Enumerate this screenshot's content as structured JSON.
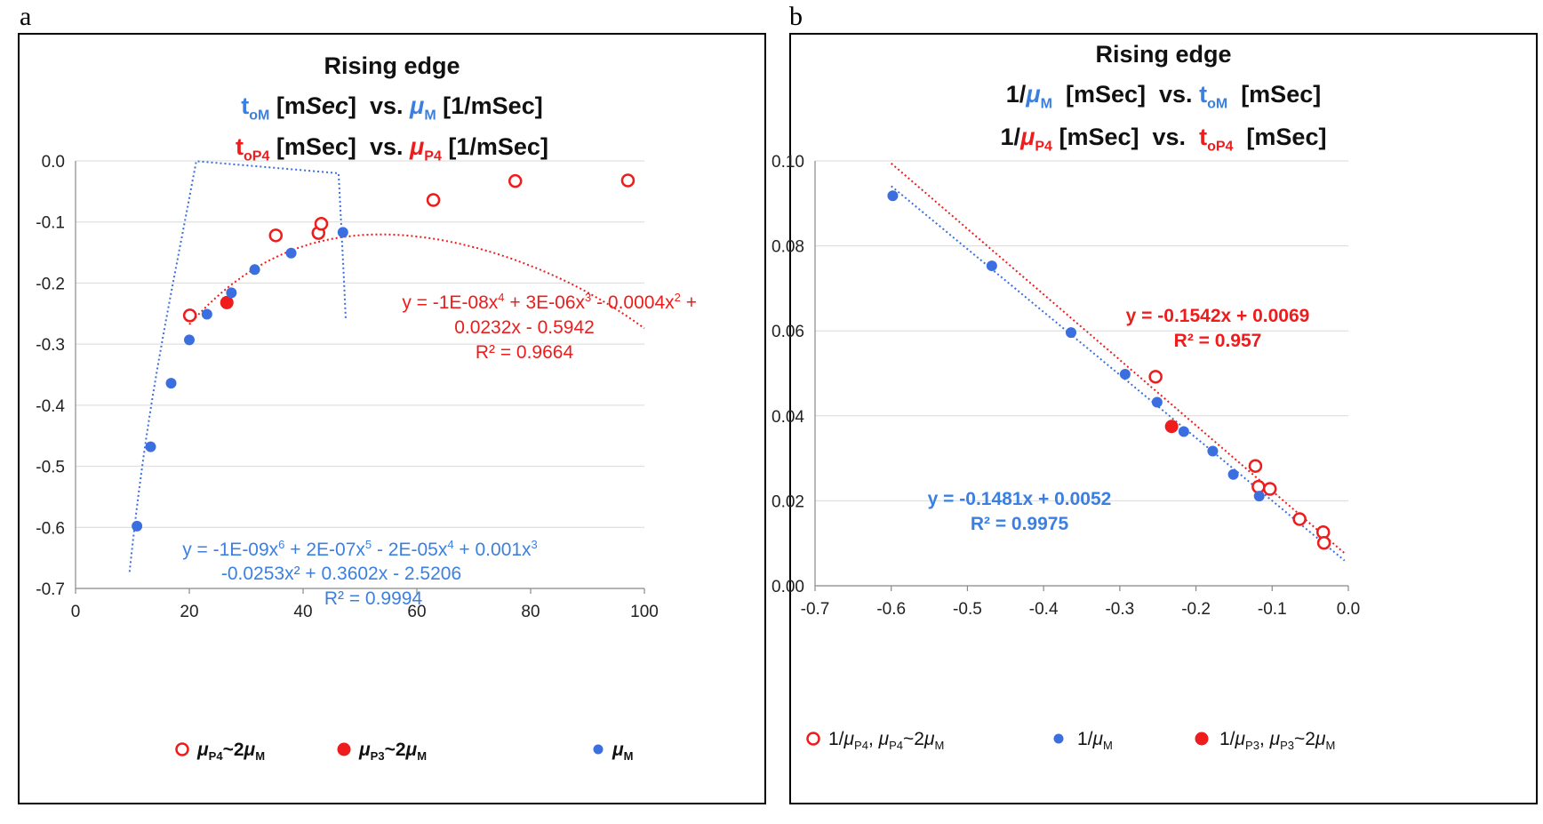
{
  "panel_a": {
    "label": "a",
    "title": "Rising edge",
    "line2": {
      "t": "t",
      "t_sub": "oM",
      "unit1": "[m",
      "unit1_it": "Sec",
      "unit1_end": "]",
      "vs": "vs.",
      "mu": "μ",
      "mu_sub": "M",
      "unit2": "[1/mSec]"
    },
    "line3": {
      "t": "t",
      "t_sub": "oP4",
      "unit1": "[mSec]",
      "vs": "vs.",
      "mu": "μ",
      "mu_sub": "P4",
      "unit2": "[1/mSec]"
    },
    "red_eq_line1": "y = -1E-08x",
    "red_eq_sup1": "4",
    "red_eq_mid1": " + 3E-06x",
    "red_eq_sup2": "3",
    "red_eq_mid2": " - 0.0004x",
    "red_eq_sup3": "2",
    "red_eq_end": " +",
    "red_eq_line2": "0.0232x - 0.5942",
    "red_eq_r2": "R² = 0.9664",
    "blue_eq_line1": "y = -1E-09x",
    "blue_eq_s1": "6",
    "blue_eq_m1": " + 2E-07x",
    "blue_eq_s2": "5",
    "blue_eq_m2": " - 2E-05x",
    "blue_eq_s3": "4",
    "blue_eq_m3": " + 0.001x",
    "blue_eq_s4": "3",
    "blue_eq_line2": "-0.0253x² + 0.3602x - 2.5206",
    "blue_eq_r2": "R² = 0.9994",
    "legend": {
      "item1": {
        "mu": "μ",
        "sub1": "P4",
        "mid": "~2",
        "mu2": "μ",
        "sub2": "M"
      },
      "item2": {
        "mu": "μ",
        "sub1": "P3",
        "mid": "~2",
        "mu2": "μ",
        "sub2": "M"
      },
      "item3": {
        "mu": "μ",
        "sub1": "M"
      }
    }
  },
  "panel_b": {
    "label": "b",
    "title": "Rising edge",
    "line2": {
      "pre": "1/",
      "mu": "μ",
      "mu_sub": "M",
      "unit1": "[mSec]",
      "vs": "vs.",
      "t": "t",
      "t_sub": "oM",
      "unit2": "[mSec]"
    },
    "line3": {
      "pre": "1/",
      "mu": "μ",
      "mu_sub": "P4",
      "unit1": "[mSec]",
      "vs": "vs.",
      "t": "t",
      "t_sub": "oP4",
      "unit2": "[mSec]"
    },
    "red_eq": "y = -0.1542x + 0.0069",
    "red_r2": "R² = 0.957",
    "blue_eq": "y = -0.1481x + 0.0052",
    "blue_r2": "R² = 0.9975",
    "legend": {
      "item1": {
        "pre": "1/",
        "mu": "μ",
        "sub1": "P4",
        "sep": ", ",
        "mu2": "μ",
        "sub2": "P4",
        "mid": "~2",
        "mu3": "μ",
        "sub3": "M"
      },
      "item2": {
        "pre": "1/",
        "mu": "μ",
        "sub1": "M"
      },
      "item3": {
        "pre": "1/",
        "mu": "μ",
        "sub1": "P3",
        "sep": ", ",
        "mu2": "μ",
        "sub2": "P3",
        "mid": "~2",
        "mu3": "μ",
        "sub3": "M"
      }
    }
  },
  "colors": {
    "red": "#ee1c1c",
    "blue": "#3b6fe0",
    "blue_text": "#3b7fe0",
    "grid": "#d9d9d9"
  },
  "chart_data": [
    {
      "type": "scatter",
      "title": "Rising edge",
      "xlim": [
        0,
        100
      ],
      "ylim": [
        -0.7,
        0.0
      ],
      "x_ticks": [
        0,
        20,
        40,
        60,
        80,
        100
      ],
      "y_ticks": [
        0.0,
        -0.1,
        -0.2,
        -0.3,
        -0.4,
        -0.5,
        -0.6,
        -0.7
      ],
      "x_tick_labels": [
        "0",
        "20",
        "40",
        "60",
        "80",
        "100"
      ],
      "y_tick_labels": [
        "0.0",
        "-0.1",
        "-0.2",
        "-0.3",
        "-0.4",
        "-0.5",
        "-0.6",
        "-0.7"
      ],
      "series": [
        {
          "name": "μP4~2μM",
          "marker": "open-circle",
          "color": "#ee1c1c",
          "points": [
            [
              20.1,
              -0.253
            ],
            [
              35.2,
              -0.122
            ],
            [
              42.7,
              -0.118
            ],
            [
              43.2,
              -0.103
            ],
            [
              62.9,
              -0.064
            ],
            [
              77.3,
              -0.033
            ],
            [
              97.1,
              -0.032
            ]
          ],
          "trend": {
            "kind": "poly4",
            "coef": [
              -0.5942,
              0.0232,
              -0.0004,
              3e-06,
              -1e-08
            ],
            "x_range": [
              20,
              100
            ],
            "r2": 0.9664
          }
        },
        {
          "name": "μP3~2μM",
          "marker": "filled-circle-large",
          "color": "#ee1c1c",
          "points": [
            [
              26.6,
              -0.232
            ]
          ]
        },
        {
          "name": "μM",
          "marker": "filled-circle",
          "color": "#3b6fe0",
          "points": [
            [
              10.8,
              -0.598
            ],
            [
              13.2,
              -0.468
            ],
            [
              16.8,
              -0.364
            ],
            [
              20.0,
              -0.293
            ],
            [
              23.1,
              -0.251
            ],
            [
              27.4,
              -0.216
            ],
            [
              31.5,
              -0.178
            ],
            [
              37.9,
              -0.151
            ],
            [
              47.0,
              -0.117
            ]
          ],
          "trend": {
            "kind": "poly6",
            "coef": [
              -2.5206,
              0.3602,
              -0.0253,
              0.001,
              -2e-05,
              2e-07,
              -1e-09
            ],
            "x_range": [
              9.5,
              47.5
            ],
            "r2": 0.9994
          }
        }
      ]
    },
    {
      "type": "scatter",
      "title": "Rising edge",
      "xlim": [
        -0.7,
        0.0
      ],
      "ylim": [
        0.0,
        0.1
      ],
      "x_ticks": [
        -0.7,
        -0.6,
        -0.5,
        -0.4,
        -0.3,
        -0.2,
        -0.1,
        0.0
      ],
      "y_ticks": [
        0.0,
        0.02,
        0.04,
        0.06,
        0.08,
        0.1
      ],
      "x_tick_labels": [
        "-0.7",
        "-0.6",
        "-0.5",
        "-0.4",
        "-0.3",
        "-0.2",
        "-0.1",
        "0.0"
      ],
      "y_tick_labels": [
        "0.00",
        "0.02",
        "0.04",
        "0.06",
        "0.08",
        "0.10"
      ],
      "series": [
        {
          "name": "1/μP4, μP4~2μM",
          "marker": "open-circle",
          "color": "#ee1c1c",
          "points": [
            [
              -0.253,
              0.0492
            ],
            [
              -0.122,
              0.0282
            ],
            [
              -0.118,
              0.0233
            ],
            [
              -0.103,
              0.0228
            ],
            [
              -0.064,
              0.0157
            ],
            [
              -0.033,
              0.0126
            ],
            [
              -0.032,
              0.0101
            ]
          ],
          "trend": {
            "kind": "linear",
            "slope": -0.1542,
            "intercept": 0.0069,
            "x_range": [
              -0.605,
              -0.005
            ],
            "r2": 0.957
          }
        },
        {
          "name": "1/μM",
          "marker": "filled-circle",
          "color": "#3b6fe0",
          "points": [
            [
              -0.598,
              0.0918
            ],
            [
              -0.468,
              0.0753
            ],
            [
              -0.364,
              0.0596
            ],
            [
              -0.293,
              0.0498
            ],
            [
              -0.251,
              0.0432
            ],
            [
              -0.216,
              0.0363
            ],
            [
              -0.178,
              0.0317
            ],
            [
              -0.151,
              0.0262
            ],
            [
              -0.117,
              0.0211
            ]
          ],
          "trend": {
            "kind": "linear",
            "slope": -0.1481,
            "intercept": 0.0052,
            "x_range": [
              -0.6,
              -0.005
            ],
            "r2": 0.9975
          }
        },
        {
          "name": "1/μP3, μP3~2μM",
          "marker": "filled-circle-large",
          "color": "#ee1c1c",
          "points": [
            [
              -0.232,
              0.0375
            ]
          ]
        }
      ]
    }
  ]
}
